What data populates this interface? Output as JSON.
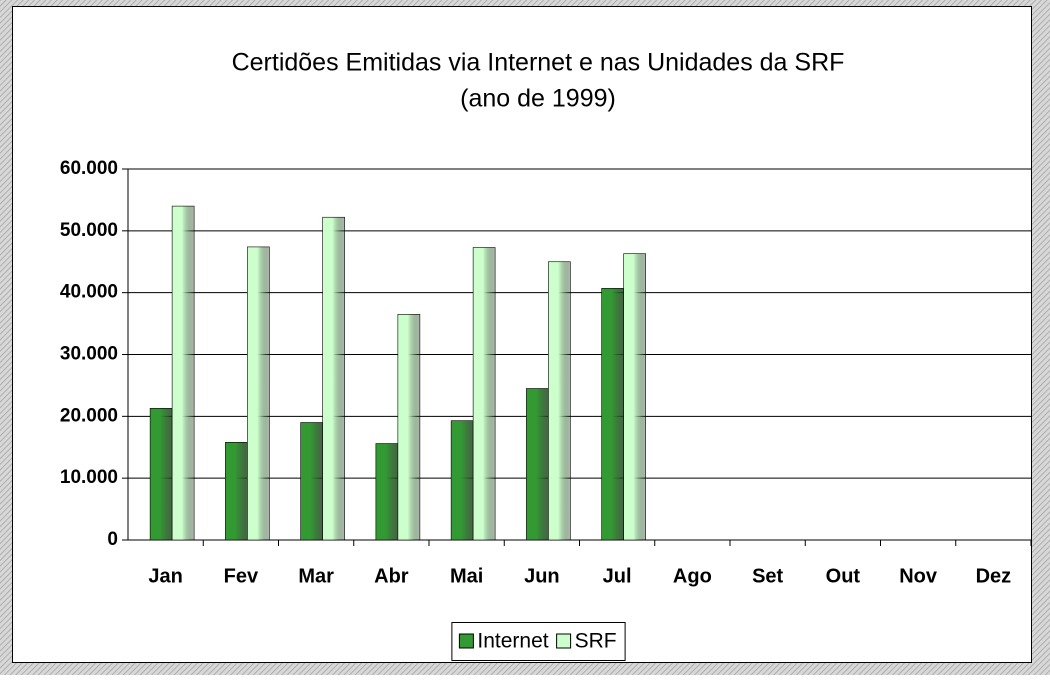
{
  "chart_data": {
    "type": "bar",
    "title": "Certidões Emitidas via Internet e nas Unidades da SRF",
    "subtitle": "(ano de 1999)",
    "categories": [
      "Jan",
      "Fev",
      "Mar",
      "Abr",
      "Mai",
      "Jun",
      "Jul",
      "Ago",
      "Set",
      "Out",
      "Nov",
      "Dez"
    ],
    "series": [
      {
        "name": "Internet",
        "color": "#339933",
        "values": [
          21300,
          15800,
          19000,
          15600,
          19300,
          24500,
          40700,
          null,
          null,
          null,
          null,
          null
        ]
      },
      {
        "name": "SRF",
        "color": "#ccffcc",
        "values": [
          54000,
          47400,
          52200,
          36500,
          47300,
          45000,
          46300,
          null,
          null,
          null,
          null,
          null
        ]
      }
    ],
    "ylim": [
      0,
      60000
    ],
    "yticks": [
      0,
      {
        "value": 10000,
        "label": "10.000"
      },
      {
        "value": 20000,
        "label": "20.000"
      },
      {
        "value": 30000,
        "label": "30.000"
      },
      {
        "value": 40000,
        "label": "40.000"
      },
      {
        "value": 50000,
        "label": "50.000"
      },
      {
        "value": 60000,
        "label": "60.000"
      }
    ],
    "grid": true,
    "legend": "bottom"
  }
}
